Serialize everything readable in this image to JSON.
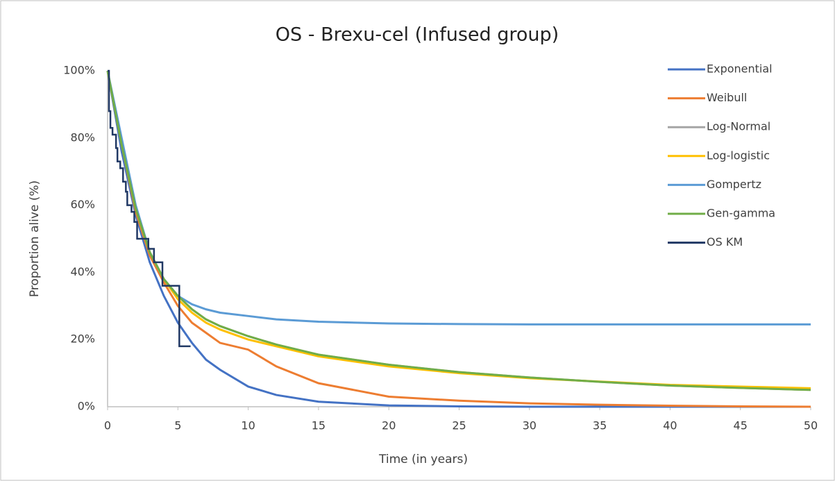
{
  "chart_data": {
    "type": "line",
    "title": "OS - Brexu-cel (Infused group)",
    "x_label": "Time (in years)",
    "y_label": "Proportion alive (%)",
    "xlim": [
      0,
      50
    ],
    "xticks": [
      0,
      5,
      10,
      15,
      20,
      25,
      30,
      35,
      40,
      45,
      50
    ],
    "ylim": [
      0,
      100
    ],
    "yticks": [
      {
        "value": 0,
        "label": "0%"
      },
      {
        "value": 20,
        "label": "20%"
      },
      {
        "value": 40,
        "label": "40%"
      },
      {
        "value": 60,
        "label": "60%"
      },
      {
        "value": 80,
        "label": "80%"
      },
      {
        "value": 100,
        "label": "100%"
      }
    ],
    "grid": false,
    "legend": "right",
    "x": [
      0,
      1,
      2,
      3,
      4,
      5,
      6,
      7,
      8,
      10,
      12,
      15,
      20,
      25,
      30,
      35,
      40,
      45,
      50
    ],
    "series": [
      {
        "name": "Exponential",
        "color": "#4472c4",
        "values": [
          100,
          76,
          57,
          43,
          33,
          25,
          19,
          14,
          11,
          6,
          3.5,
          1.5,
          0.4,
          0.1,
          0,
          0,
          0,
          0,
          0
        ]
      },
      {
        "name": "Weibull",
        "color": "#ed7d31",
        "values": [
          100,
          78,
          58,
          45,
          37,
          30,
          25,
          22,
          19,
          17,
          12,
          7,
          3,
          1.8,
          1,
          0.6,
          0.3,
          0.1,
          0
        ]
      },
      {
        "name": "Log-Normal",
        "color": "#a5a5a5",
        "values": [
          100,
          78,
          59,
          46,
          38,
          33,
          29,
          26,
          24,
          21,
          18.5,
          15.5,
          12.5,
          10.3,
          8.7,
          7.4,
          6.3,
          5.6,
          5
        ]
      },
      {
        "name": "Log-logistic",
        "color": "#ffc000",
        "values": [
          100,
          78,
          59,
          46,
          38,
          32,
          28,
          25,
          23,
          20,
          18,
          15,
          12,
          10,
          8.5,
          7.5,
          6.5,
          6,
          5.5
        ]
      },
      {
        "name": "Gompertz",
        "color": "#5b9bd5",
        "values": [
          100,
          80,
          60,
          46,
          38,
          33,
          30.5,
          29,
          28,
          27,
          26,
          25.3,
          24.8,
          24.6,
          24.5,
          24.5,
          24.5,
          24.5,
          24.5
        ]
      },
      {
        "name": "Gen-gamma",
        "color": "#70ad47",
        "values": [
          100,
          78,
          59,
          46,
          38,
          33,
          29,
          26,
          24,
          21,
          18.5,
          15.5,
          12.5,
          10.3,
          8.7,
          7.4,
          6.3,
          5.6,
          5
        ]
      },
      {
        "name": "OS KM",
        "color": "#203864",
        "step": true,
        "x": [
          0,
          0.1,
          0.2,
          0.35,
          0.6,
          0.7,
          0.9,
          1.1,
          1.3,
          1.4,
          1.7,
          1.9,
          2.1,
          2.9,
          3.3,
          3.9,
          5.1,
          5.9
        ],
        "values": [
          100,
          88,
          83,
          81,
          77,
          73,
          71,
          67,
          64,
          60,
          58,
          55,
          50,
          47,
          43,
          36,
          18,
          18
        ]
      }
    ]
  }
}
